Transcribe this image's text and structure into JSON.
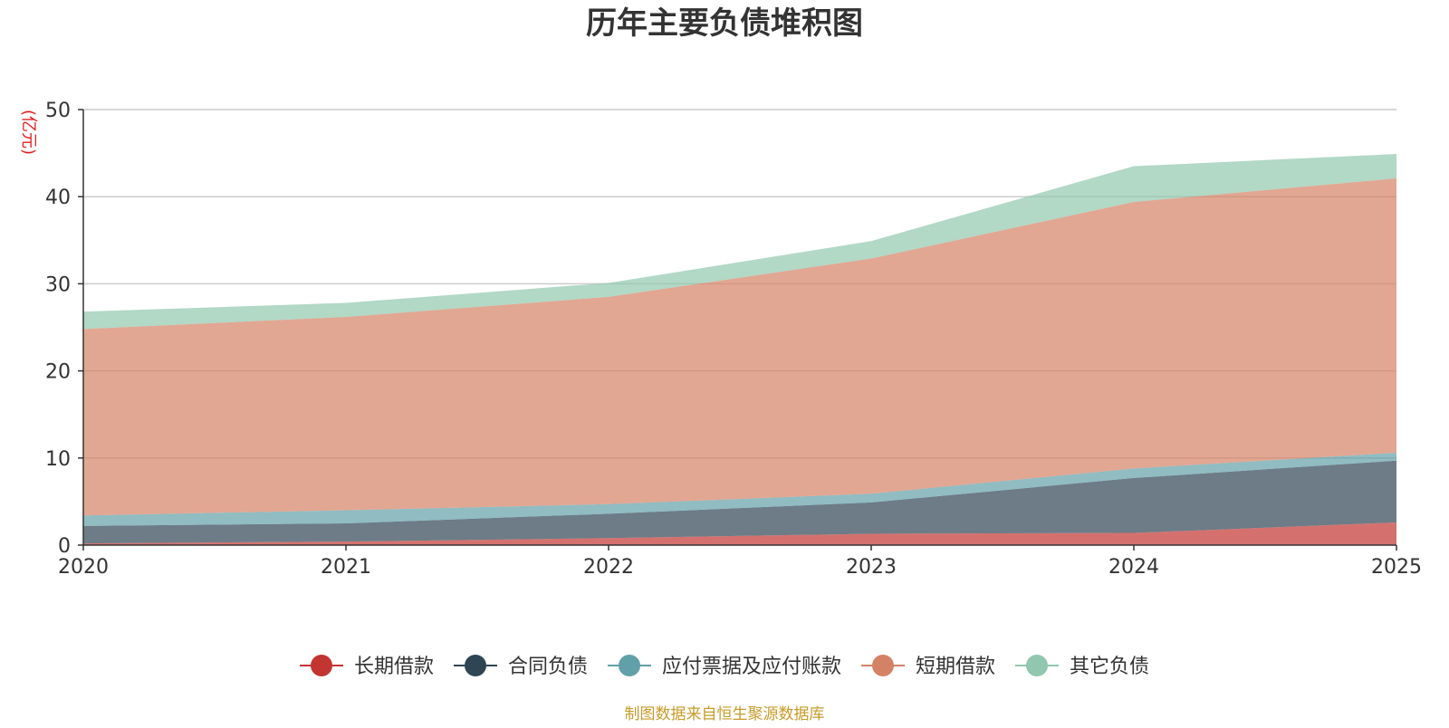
{
  "chart_data": {
    "type": "area",
    "stacked": true,
    "title": "历年主要负债堆积图",
    "ylabel": "(亿元)",
    "xlabel": "",
    "x": [
      "2020",
      "2021",
      "2022",
      "2023",
      "2024",
      "2025"
    ],
    "ylim": [
      0,
      50
    ],
    "yticks": [
      "0",
      "10",
      "20",
      "30",
      "40",
      "50"
    ],
    "grid": true,
    "legend_position": "bottom",
    "series": [
      {
        "name": "长期借款",
        "color": "#c23531",
        "values": [
          0.2,
          0.4,
          0.8,
          1.3,
          1.4,
          2.6
        ]
      },
      {
        "name": "合同负债",
        "color": "#2f4554",
        "values": [
          2.0,
          2.1,
          2.8,
          3.6,
          6.3,
          7.1
        ]
      },
      {
        "name": "应付票据及应付账款",
        "color": "#61a0a8",
        "values": [
          1.2,
          1.5,
          1.1,
          1.0,
          1.1,
          0.9
        ]
      },
      {
        "name": "短期借款",
        "color": "#d48265",
        "values": [
          21.4,
          22.2,
          23.8,
          27.0,
          30.6,
          31.5
        ]
      },
      {
        "name": "其它负债",
        "color": "#91c7ae",
        "values": [
          2.0,
          1.6,
          1.6,
          2.0,
          4.1,
          2.8
        ]
      }
    ]
  },
  "footer": {
    "source_text": "制图数据来自恒生聚源数据库"
  }
}
